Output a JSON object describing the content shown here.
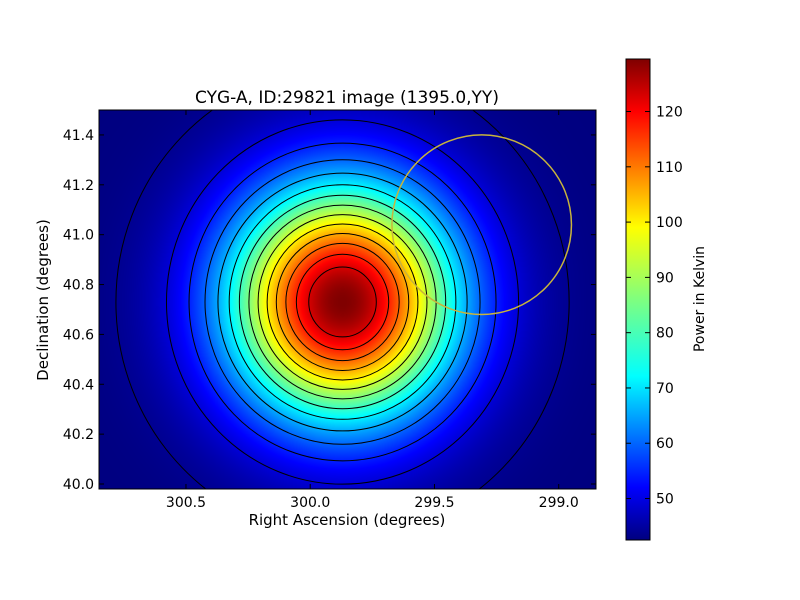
{
  "chart_data": {
    "type": "heatmap",
    "title": "CYG-A, ID:29821 image (1395.0,YY)",
    "xlabel": "Right Ascension (degrees)",
    "ylabel": "Declination (degrees)",
    "xlim": [
      300.85,
      298.85
    ],
    "ylim": [
      39.98,
      41.5
    ],
    "xticks": [
      {
        "value": 300.5,
        "label": "300.5"
      },
      {
        "value": 300.0,
        "label": "300.0"
      },
      {
        "value": 299.5,
        "label": "299.5"
      },
      {
        "value": 299.0,
        "label": "299.0"
      }
    ],
    "yticks": [
      {
        "value": 40.0,
        "label": "40.0"
      },
      {
        "value": 40.2,
        "label": "40.2"
      },
      {
        "value": 40.4,
        "label": "40.4"
      },
      {
        "value": 40.6,
        "label": "40.6"
      },
      {
        "value": 40.8,
        "label": "40.8"
      },
      {
        "value": 41.0,
        "label": "41.0"
      },
      {
        "value": 41.2,
        "label": "41.2"
      },
      {
        "value": 41.4,
        "label": "41.4"
      }
    ],
    "colorbar": {
      "label": "Power in Kelvin",
      "min": 42.5,
      "max": 129.5,
      "colormap": "jet",
      "ticks": [
        {
          "value": 50,
          "label": "50"
        },
        {
          "value": 60,
          "label": "60"
        },
        {
          "value": 70,
          "label": "70"
        },
        {
          "value": 80,
          "label": "80"
        },
        {
          "value": 90,
          "label": "90"
        },
        {
          "value": 100,
          "label": "100"
        },
        {
          "value": 110,
          "label": "110"
        },
        {
          "value": 120,
          "label": "120"
        }
      ]
    },
    "source": {
      "ra": 299.87,
      "dec": 40.73,
      "peak": 129.5,
      "background": 42.5,
      "sigma_ra_deg": 0.32,
      "sigma_dec_deg": 0.33
    },
    "contour_levels": [
      44,
      50,
      56,
      62,
      68,
      74,
      80,
      86,
      92,
      98,
      104,
      110,
      116,
      122
    ],
    "contour_color": "#000000",
    "marker_circle": {
      "ra": 299.31,
      "dec": 41.04,
      "radius_deg": 0.36,
      "color": "#c8b43c"
    },
    "grid": false
  }
}
